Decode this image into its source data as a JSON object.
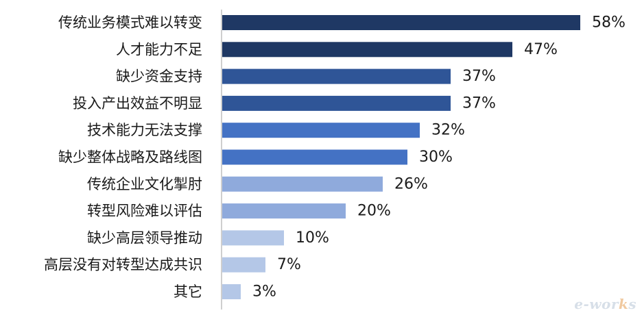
{
  "chart_data": {
    "type": "bar",
    "orientation": "horizontal",
    "categories": [
      "传统业务模式难以转变",
      "人才能力不足",
      "缺少资金支持",
      "投入产出效益不明显",
      "技术能力无法支撑",
      "缺少整体战略及路线图",
      "传统企业文化掣肘",
      "转型风险难以评估",
      "缺少高层领导推动",
      "高层没有对转型达成共识",
      "其它"
    ],
    "values": [
      58,
      47,
      37,
      37,
      32,
      30,
      26,
      20,
      10,
      7,
      3
    ],
    "value_labels": [
      "58%",
      "47%",
      "37%",
      "37%",
      "32%",
      "30%",
      "26%",
      "20%",
      "10%",
      "7%",
      "3%"
    ],
    "bar_colors": [
      "#1f3864",
      "#1f3864",
      "#2f5597",
      "#2f5597",
      "#4472c4",
      "#4472c4",
      "#8faadc",
      "#8faadc",
      "#b4c7e7",
      "#b4c7e7",
      "#b4c7e7"
    ],
    "xlim": [
      0,
      62
    ],
    "grid": false,
    "axis_line_color": "#bfbfbf"
  },
  "watermark": {
    "text_prefix": "e-wor",
    "text_accent": "k",
    "text_suffix": "s"
  }
}
